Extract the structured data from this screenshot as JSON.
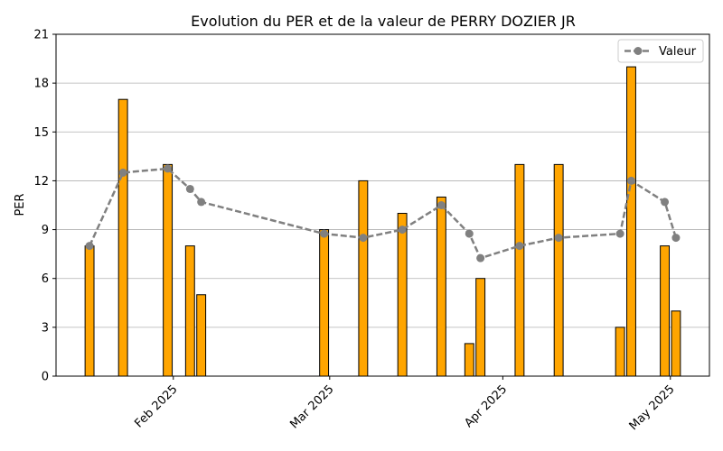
{
  "chart_data": {
    "type": "bar",
    "title": "Evolution du PER et de la valeur de PERRY DOZIER JR",
    "xlabel": "",
    "ylabel": "PER",
    "ylim": [
      0,
      21
    ],
    "yticks": [
      0,
      3,
      6,
      9,
      12,
      15,
      18,
      21
    ],
    "xlim": [
      "2025-01-11",
      "2025-05-08"
    ],
    "xticks": [
      {
        "date": "2025-02-01",
        "label": "Feb 2025"
      },
      {
        "date": "2025-03-01",
        "label": "Mar 2025"
      },
      {
        "date": "2025-04-01",
        "label": "Apr 2025"
      },
      {
        "date": "2025-05-01",
        "label": "May 2025"
      }
    ],
    "grid": "y",
    "legend": {
      "position": "top-right",
      "entries": [
        "Valeur"
      ]
    },
    "colors": {
      "bar_fill": "#FFA500",
      "bar_edge": "#000000",
      "line": "#808080",
      "grid": "#b0b0b0"
    },
    "bars": [
      {
        "date": "2025-01-17",
        "value": 8
      },
      {
        "date": "2025-01-23",
        "value": 17
      },
      {
        "date": "2025-01-31",
        "value": 13
      },
      {
        "date": "2025-02-04",
        "value": 8
      },
      {
        "date": "2025-02-06",
        "value": 5
      },
      {
        "date": "2025-02-28",
        "value": 9
      },
      {
        "date": "2025-03-07",
        "value": 12
      },
      {
        "date": "2025-03-14",
        "value": 10
      },
      {
        "date": "2025-03-21",
        "value": 11
      },
      {
        "date": "2025-03-26",
        "value": 2
      },
      {
        "date": "2025-03-28",
        "value": 6
      },
      {
        "date": "2025-04-04",
        "value": 13
      },
      {
        "date": "2025-04-11",
        "value": 13
      },
      {
        "date": "2025-04-22",
        "value": 3
      },
      {
        "date": "2025-04-24",
        "value": 19
      },
      {
        "date": "2025-04-30",
        "value": 8
      },
      {
        "date": "2025-05-02",
        "value": 4
      }
    ],
    "series": [
      {
        "name": "Valeur",
        "style": "dashed-with-circles",
        "points": [
          {
            "date": "2025-01-17",
            "value": 8.0
          },
          {
            "date": "2025-01-23",
            "value": 12.5
          },
          {
            "date": "2025-01-31",
            "value": 12.75
          },
          {
            "date": "2025-02-04",
            "value": 11.5
          },
          {
            "date": "2025-02-06",
            "value": 10.7
          },
          {
            "date": "2025-02-28",
            "value": 8.75
          },
          {
            "date": "2025-03-07",
            "value": 8.5
          },
          {
            "date": "2025-03-14",
            "value": 9.0
          },
          {
            "date": "2025-03-21",
            "value": 10.5
          },
          {
            "date": "2025-03-26",
            "value": 8.75
          },
          {
            "date": "2025-03-28",
            "value": 7.25
          },
          {
            "date": "2025-04-04",
            "value": 8.0
          },
          {
            "date": "2025-04-11",
            "value": 8.5
          },
          {
            "date": "2025-04-22",
            "value": 8.75
          },
          {
            "date": "2025-04-24",
            "value": 12.0
          },
          {
            "date": "2025-04-30",
            "value": 10.7
          },
          {
            "date": "2025-05-02",
            "value": 8.5
          }
        ]
      }
    ]
  }
}
